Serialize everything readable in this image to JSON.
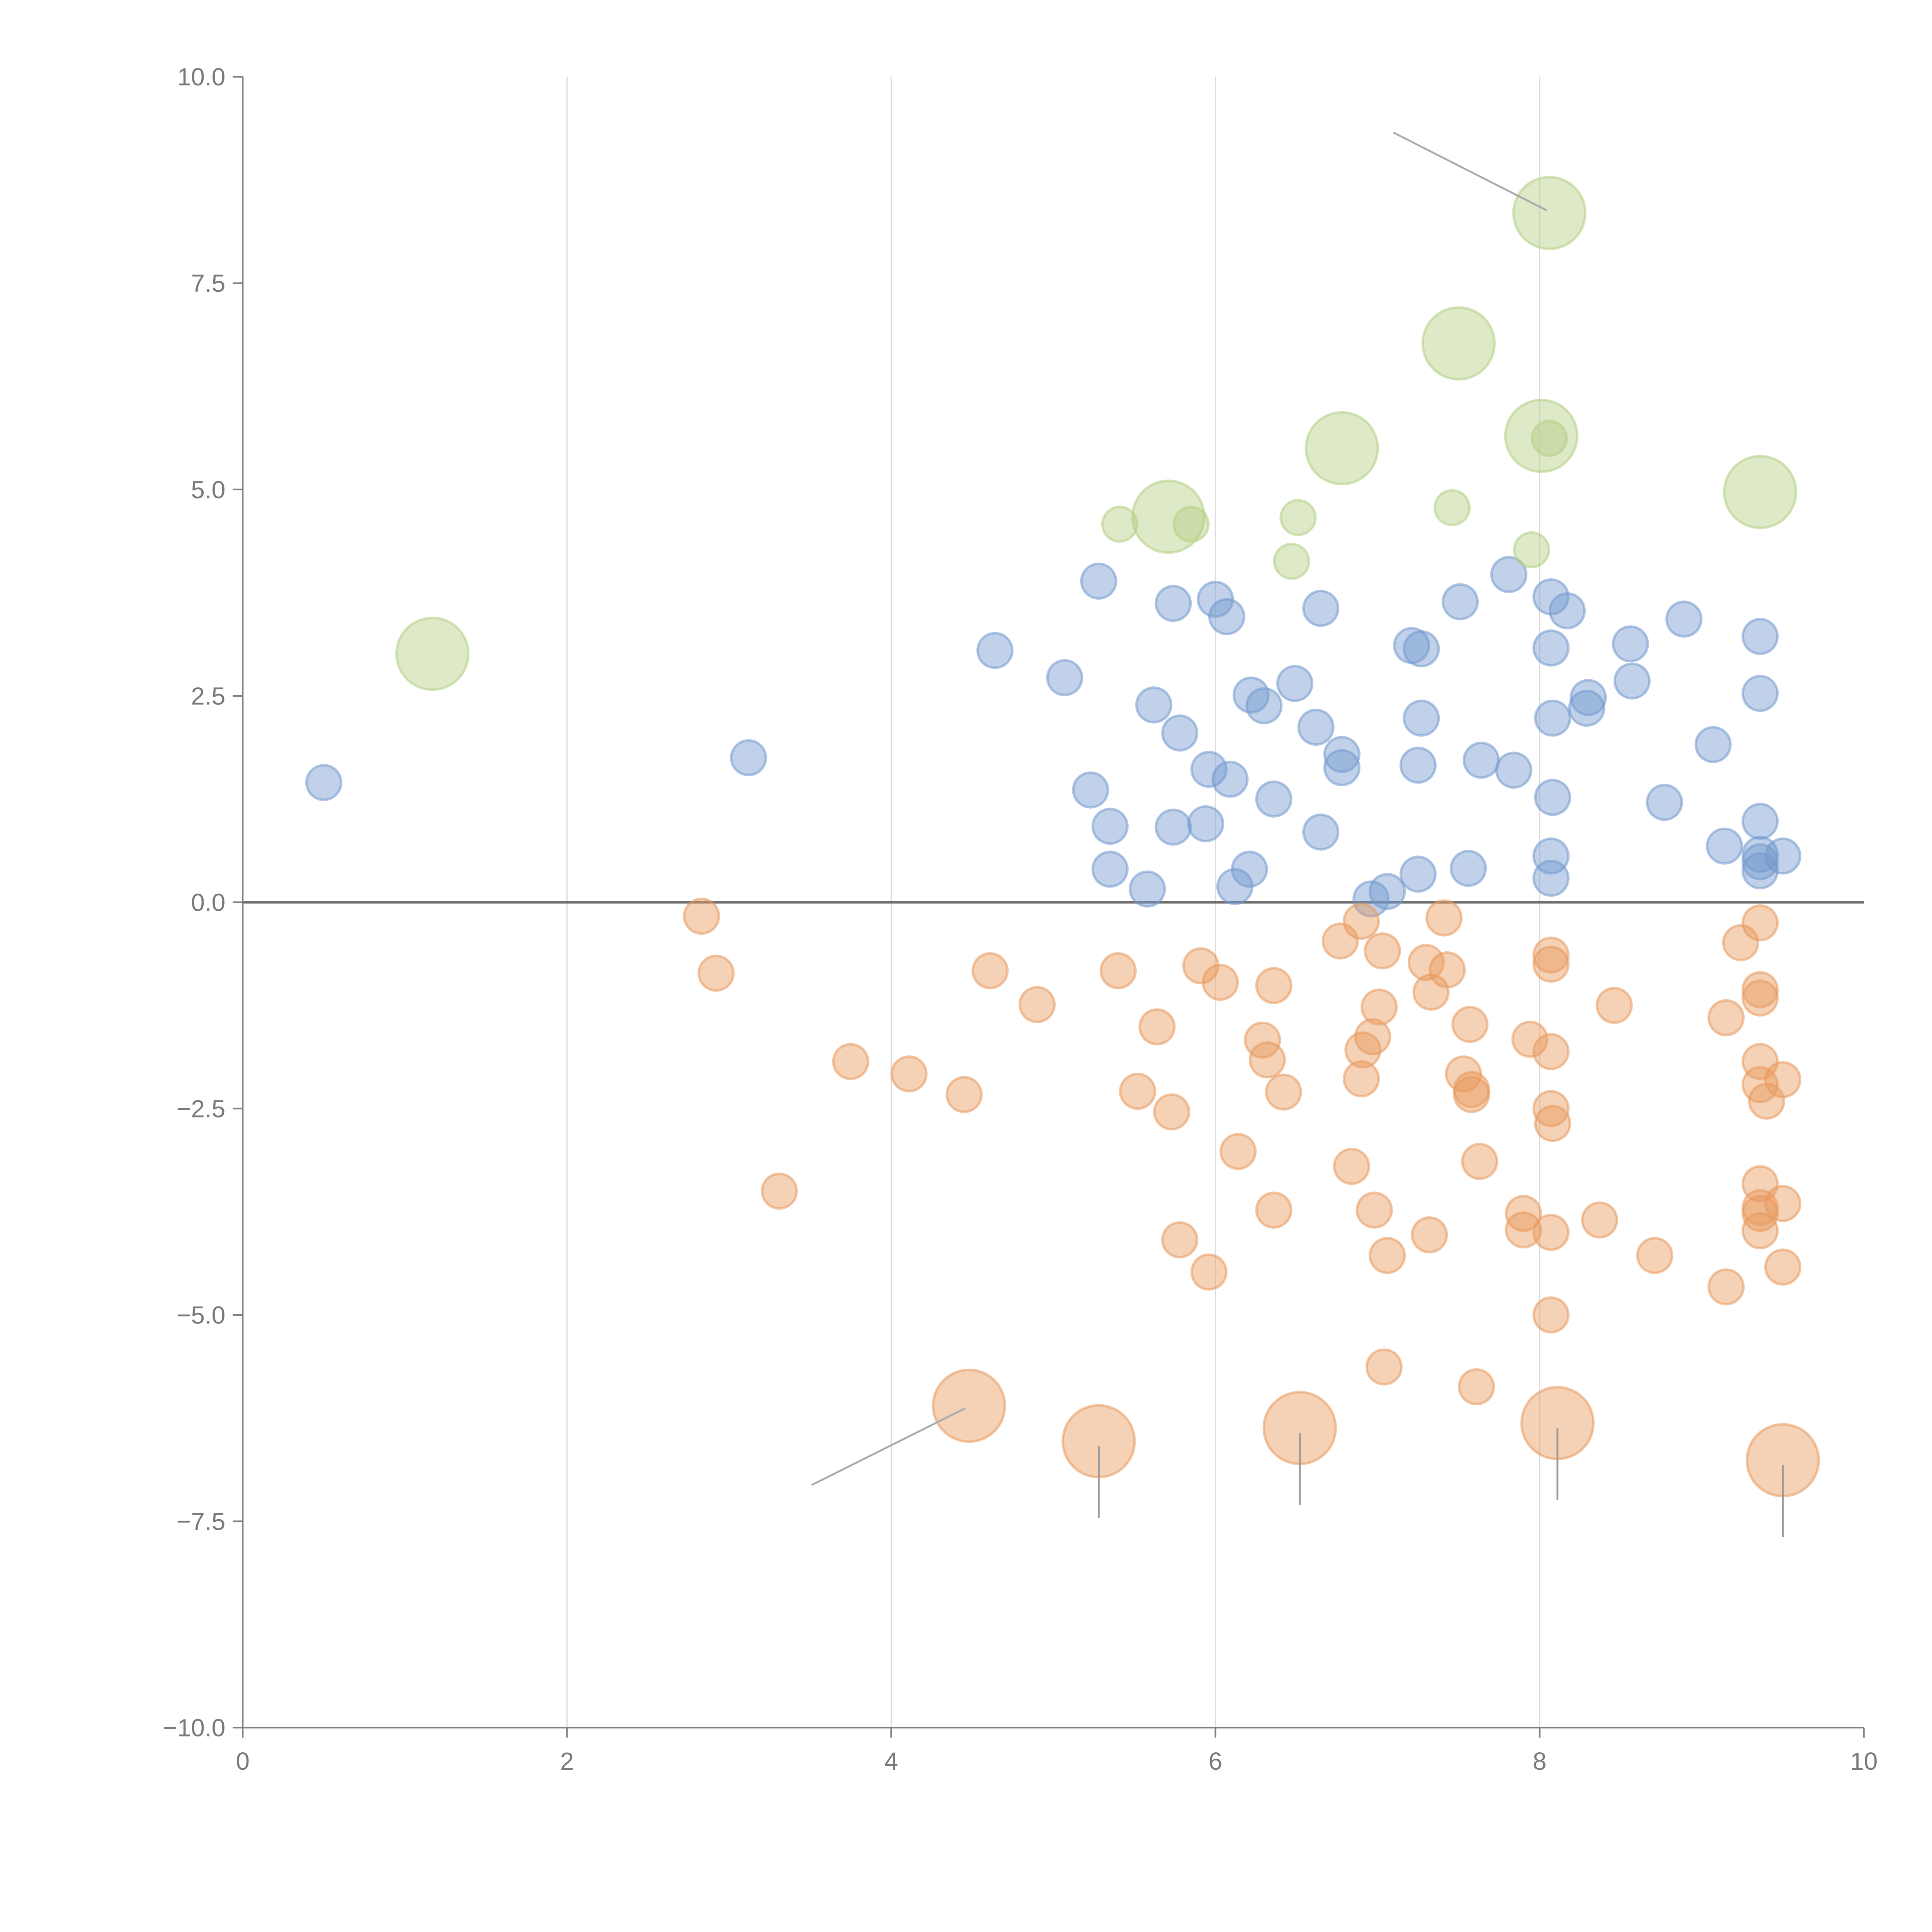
{
  "chart_data": {
    "type": "scatter",
    "title": "",
    "xlabel": "",
    "ylabel": "",
    "xlim": [
      0,
      10
    ],
    "ylim": [
      -10,
      10
    ],
    "grid": "vertical",
    "x_ticks": [
      "0",
      "2",
      "4",
      "6",
      "8",
      "10"
    ],
    "y_ticks": [
      "10.0",
      "7.5",
      "5.0",
      "2.5",
      "0.0",
      "−2.5",
      "−5.0",
      "−7.5",
      "−10.0"
    ],
    "colors": {
      "positive": "#7399cf",
      "negative": "#e8995c",
      "highlight": "#b3cf82",
      "zero_line": "#707070",
      "axis": "#808080"
    },
    "series": [
      {
        "name": "positive",
        "color": "#7399cf",
        "size": 1,
        "points": [
          [
            0.5,
            1.45
          ],
          [
            3.12,
            1.75
          ],
          [
            4.64,
            3.05
          ],
          [
            5.07,
            2.72
          ],
          [
            5.28,
            3.89
          ],
          [
            5.23,
            1.36
          ],
          [
            5.35,
            0.92
          ],
          [
            5.35,
            0.4
          ],
          [
            5.58,
            0.16
          ],
          [
            5.62,
            2.39
          ],
          [
            5.74,
            3.62
          ],
          [
            5.78,
            2.05
          ],
          [
            5.74,
            0.91
          ],
          [
            5.94,
            0.95
          ],
          [
            5.96,
            1.61
          ],
          [
            6.0,
            3.67
          ],
          [
            6.07,
            3.46
          ],
          [
            6.09,
            1.49
          ],
          [
            6.12,
            0.19
          ],
          [
            6.21,
            0.4
          ],
          [
            6.22,
            2.51
          ],
          [
            6.3,
            2.38
          ],
          [
            6.36,
            1.25
          ],
          [
            6.49,
            2.65
          ],
          [
            6.62,
            2.12
          ],
          [
            6.65,
            3.56
          ],
          [
            6.65,
            0.85
          ],
          [
            6.78,
            1.79
          ],
          [
            6.78,
            1.63
          ],
          [
            6.96,
            0.04
          ],
          [
            7.06,
            0.13
          ],
          [
            7.21,
            3.11
          ],
          [
            7.27,
            3.07
          ],
          [
            7.27,
            2.23
          ],
          [
            7.25,
            1.66
          ],
          [
            7.25,
            0.34
          ],
          [
            7.51,
            3.64
          ],
          [
            7.56,
            0.41
          ],
          [
            7.64,
            1.72
          ],
          [
            7.81,
            3.97
          ],
          [
            7.84,
            1.6
          ],
          [
            8.07,
            3.7
          ],
          [
            8.07,
            3.08
          ],
          [
            8.08,
            2.23
          ],
          [
            8.08,
            1.27
          ],
          [
            8.07,
            0.56
          ],
          [
            8.07,
            0.29
          ],
          [
            8.17,
            3.53
          ],
          [
            8.3,
            2.48
          ],
          [
            8.29,
            2.35
          ],
          [
            8.56,
            3.13
          ],
          [
            8.57,
            2.68
          ],
          [
            8.77,
            1.21
          ],
          [
            8.89,
            3.43
          ],
          [
            9.07,
            1.91
          ],
          [
            9.14,
            0.68
          ],
          [
            9.36,
            3.22
          ],
          [
            9.36,
            2.53
          ],
          [
            9.36,
            0.98
          ],
          [
            9.36,
            0.58
          ],
          [
            9.36,
            0.38
          ],
          [
            9.36,
            0.49
          ],
          [
            9.5,
            0.56
          ]
        ]
      },
      {
        "name": "negative",
        "color": "#e8995c",
        "size": 1,
        "points": [
          [
            2.83,
            -0.17
          ],
          [
            2.92,
            -0.86
          ],
          [
            3.31,
            -3.5
          ],
          [
            3.75,
            -1.93
          ],
          [
            4.11,
            -2.08
          ],
          [
            4.45,
            -2.33
          ],
          [
            4.61,
            -0.83
          ],
          [
            4.9,
            -1.24
          ],
          [
            5.4,
            -0.83
          ],
          [
            5.52,
            -2.29
          ],
          [
            5.64,
            -1.51
          ],
          [
            5.73,
            -2.54
          ],
          [
            5.78,
            -4.09
          ],
          [
            5.91,
            -0.77
          ],
          [
            5.96,
            -4.48
          ],
          [
            6.03,
            -0.97
          ],
          [
            6.14,
            -3.02
          ],
          [
            6.29,
            -1.67
          ],
          [
            6.32,
            -1.91
          ],
          [
            6.36,
            -1.01
          ],
          [
            6.36,
            -3.73
          ],
          [
            6.42,
            -2.3
          ],
          [
            6.77,
            -0.47
          ],
          [
            6.84,
            -3.2
          ],
          [
            6.9,
            -0.23
          ],
          [
            6.91,
            -1.79
          ],
          [
            6.9,
            -2.14
          ],
          [
            6.97,
            -1.63
          ],
          [
            6.98,
            -3.73
          ],
          [
            7.01,
            -1.27
          ],
          [
            7.03,
            -0.59
          ],
          [
            7.06,
            -4.28
          ],
          [
            7.04,
            -5.63
          ],
          [
            7.3,
            -0.73
          ],
          [
            7.33,
            -1.09
          ],
          [
            7.32,
            -4.03
          ],
          [
            7.41,
            -0.19
          ],
          [
            7.43,
            -0.82
          ],
          [
            7.53,
            -2.08
          ],
          [
            7.57,
            -1.48
          ],
          [
            7.58,
            -2.27
          ],
          [
            7.58,
            -2.33
          ],
          [
            7.63,
            -3.14
          ],
          [
            7.61,
            -5.87
          ],
          [
            7.9,
            -3.77
          ],
          [
            7.9,
            -3.97
          ],
          [
            7.94,
            -1.66
          ],
          [
            8.07,
            -0.64
          ],
          [
            8.07,
            -0.75
          ],
          [
            8.07,
            -1.81
          ],
          [
            8.07,
            -2.5
          ],
          [
            8.08,
            -2.68
          ],
          [
            8.07,
            -4.0
          ],
          [
            8.07,
            -5.0
          ],
          [
            8.37,
            -3.85
          ],
          [
            8.46,
            -1.25
          ],
          [
            8.71,
            -4.28
          ],
          [
            9.15,
            -1.4
          ],
          [
            9.15,
            -4.66
          ],
          [
            9.24,
            -0.49
          ],
          [
            9.36,
            -0.25
          ],
          [
            9.36,
            -1.06
          ],
          [
            9.36,
            -1.16
          ],
          [
            9.36,
            -1.93
          ],
          [
            9.36,
            -2.21
          ],
          [
            9.4,
            -2.41
          ],
          [
            9.36,
            -3.41
          ],
          [
            9.36,
            -3.7
          ],
          [
            9.36,
            -3.77
          ],
          [
            9.36,
            -3.98
          ],
          [
            9.5,
            -2.15
          ],
          [
            9.5,
            -3.65
          ],
          [
            9.5,
            -4.42
          ]
        ]
      },
      {
        "name": "negative-extreme",
        "color": "#e8995c",
        "size": 4,
        "points": [
          [
            4.48,
            -6.1
          ],
          [
            5.28,
            -6.53
          ],
          [
            6.52,
            -6.37
          ],
          [
            8.11,
            -6.31
          ],
          [
            9.5,
            -6.76
          ]
        ]
      },
      {
        "name": "highlight-small",
        "color": "#b3cf82",
        "size": 1,
        "points": [
          [
            5.41,
            4.58
          ],
          [
            5.85,
            4.58
          ],
          [
            6.51,
            4.66
          ],
          [
            6.47,
            4.13
          ],
          [
            7.46,
            4.78
          ],
          [
            7.95,
            4.27
          ],
          [
            8.06,
            5.62
          ]
        ]
      },
      {
        "name": "highlight-large",
        "color": "#b3cf82",
        "size": 4,
        "points": [
          [
            1.17,
            3.01
          ],
          [
            5.71,
            4.67
          ],
          [
            6.78,
            5.5
          ],
          [
            7.5,
            6.77
          ],
          [
            8.01,
            5.65
          ],
          [
            8.06,
            8.35
          ],
          [
            9.36,
            4.97
          ]
        ]
      }
    ]
  }
}
